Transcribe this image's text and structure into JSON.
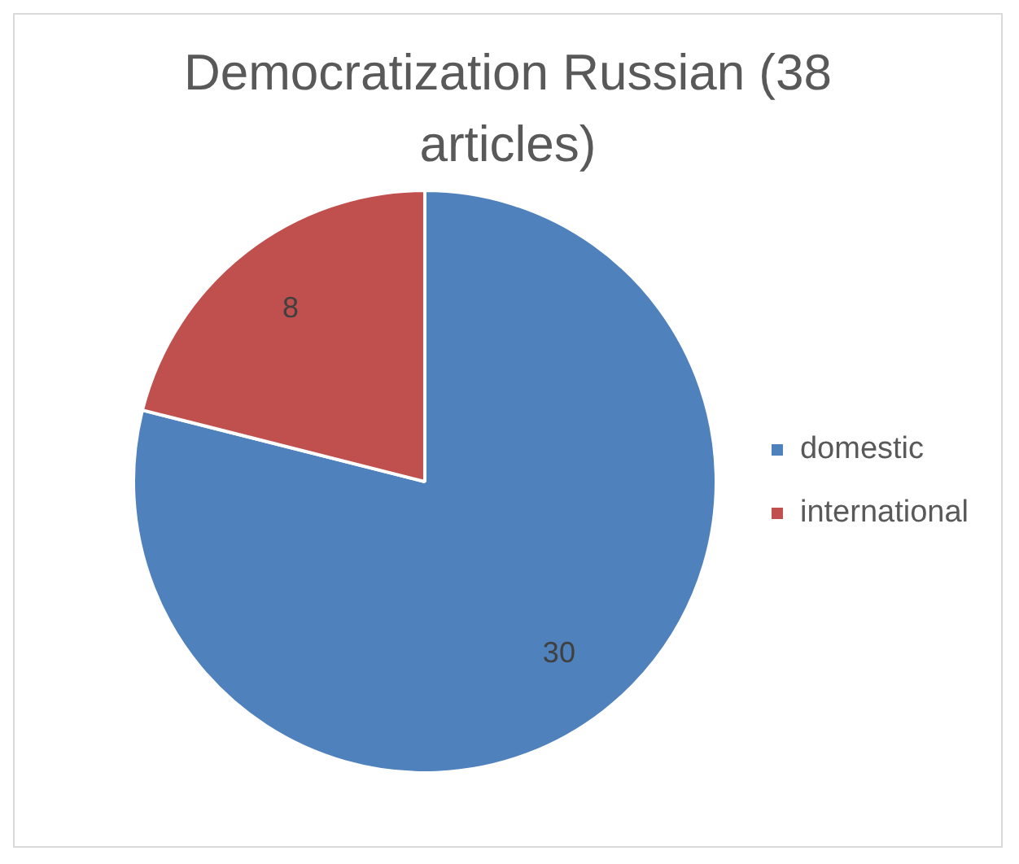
{
  "chart_data": {
    "type": "pie",
    "title": "Democratization Russian (38 articles)",
    "categories": [
      "domestic",
      "international"
    ],
    "values": [
      30,
      8
    ],
    "colors": [
      "#4f81bd",
      "#c0504d"
    ],
    "data_labels": true,
    "legend": "right"
  }
}
